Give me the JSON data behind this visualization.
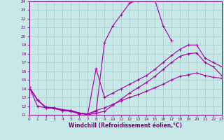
{
  "xlabel": "Windchill (Refroidissement éolien,°C)",
  "background_color": "#c8e8e8",
  "grid_color": "#a8d0d0",
  "line_color": "#aa00aa",
  "xlim": [
    0,
    23
  ],
  "ylim": [
    11,
    24
  ],
  "xticks": [
    0,
    1,
    2,
    3,
    4,
    5,
    6,
    7,
    8,
    9,
    10,
    11,
    12,
    13,
    14,
    15,
    16,
    17,
    18,
    19,
    20,
    21,
    22,
    23
  ],
  "yticks": [
    11,
    12,
    13,
    14,
    15,
    16,
    17,
    18,
    19,
    20,
    21,
    22,
    23,
    24
  ],
  "lines": [
    {
      "x": [
        0,
        1,
        2,
        3,
        4,
        5,
        6,
        7,
        8,
        9,
        10,
        11,
        12,
        13,
        14,
        15,
        16,
        17
      ],
      "y": [
        14.2,
        12.7,
        11.8,
        11.7,
        11.5,
        11.4,
        11.1,
        11.1,
        11.4,
        19.3,
        21.2,
        22.5,
        23.8,
        24.1,
        24.3,
        24.2,
        21.2,
        19.5
      ]
    },
    {
      "x": [
        0,
        1,
        2,
        3,
        4,
        5,
        6,
        7,
        8,
        9,
        10,
        11,
        12,
        13,
        14,
        15,
        16,
        17,
        18,
        19,
        20,
        21,
        22,
        23
      ],
      "y": [
        14.2,
        12.7,
        11.8,
        11.8,
        11.5,
        11.4,
        11.2,
        11.0,
        11.2,
        11.4,
        12.1,
        12.8,
        13.5,
        14.1,
        14.7,
        15.4,
        16.2,
        17.0,
        17.7,
        18.0,
        18.1,
        17.0,
        16.5,
        15.5
      ]
    },
    {
      "x": [
        0,
        1,
        2,
        3,
        4,
        5,
        6,
        7,
        8,
        9,
        10,
        11,
        12,
        13,
        14,
        15,
        16,
        17,
        18,
        19,
        20,
        21,
        22,
        23
      ],
      "y": [
        14.2,
        12.7,
        11.9,
        11.8,
        11.6,
        11.5,
        11.2,
        11.1,
        16.3,
        13.0,
        13.5,
        14.0,
        14.5,
        15.0,
        15.5,
        16.2,
        17.0,
        17.8,
        18.5,
        19.0,
        19.0,
        17.5,
        17.0,
        16.5
      ]
    },
    {
      "x": [
        0,
        1,
        2,
        3,
        4,
        5,
        6,
        7,
        8,
        9,
        10,
        11,
        12,
        13,
        14,
        15,
        16,
        17,
        18,
        19,
        20,
        21,
        22,
        23
      ],
      "y": [
        14.2,
        12.0,
        11.8,
        11.8,
        11.5,
        11.5,
        11.2,
        11.1,
        11.5,
        11.8,
        12.2,
        12.6,
        13.0,
        13.3,
        13.7,
        14.1,
        14.5,
        15.0,
        15.4,
        15.6,
        15.8,
        15.5,
        15.3,
        15.2
      ]
    }
  ]
}
